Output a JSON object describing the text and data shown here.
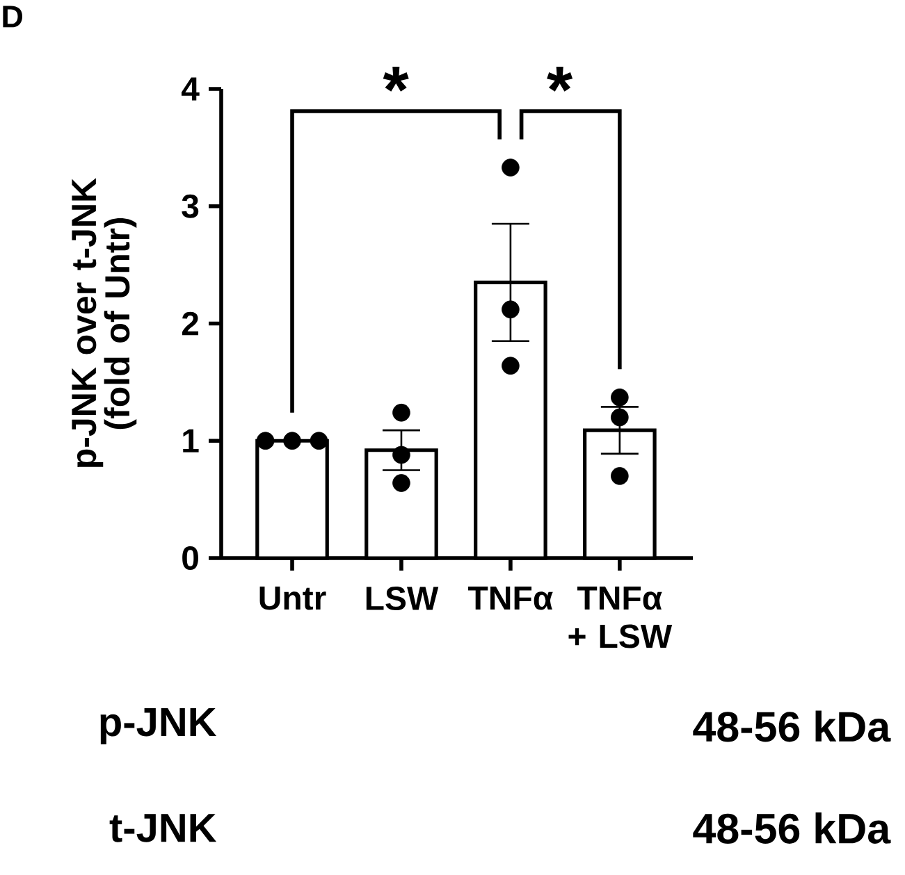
{
  "chart_data": {
    "type": "bar",
    "title": "D",
    "ylabel": "p-JNK over t-JNK (fold of Untr)",
    "categories": [
      "Untr",
      "LSW",
      "TNFα",
      "TNFα + LSW"
    ],
    "series": [
      {
        "color": "#ffffff",
        "values": [
          1.0,
          0.92,
          2.35,
          1.09
        ],
        "errors": [
          0,
          0.17,
          0.5,
          0.2
        ]
      },
      {
        "type": "scatter",
        "color": "#000000",
        "marker": "circle",
        "x": [
          "Untr",
          "Untr",
          "Untr",
          "LSW",
          "LSW",
          "LSW",
          "TNFα",
          "TNFα",
          "TNFα",
          "TNFα + LSW",
          "TNFα + LSW",
          "TNFα + LSW"
        ],
        "values": [
          1.0,
          1.0,
          1.0,
          1.24,
          0.88,
          0.64,
          3.33,
          2.12,
          1.64,
          1.37,
          1.2,
          0.7
        ]
      }
    ],
    "ylim": [
      0,
      4
    ],
    "yticks": [
      0,
      1,
      2,
      3,
      4
    ],
    "annotations": [
      "*",
      "*",
      "p-JNK",
      "48-56 kDa",
      "t-JNK",
      "48-56 kDa"
    ]
  }
}
